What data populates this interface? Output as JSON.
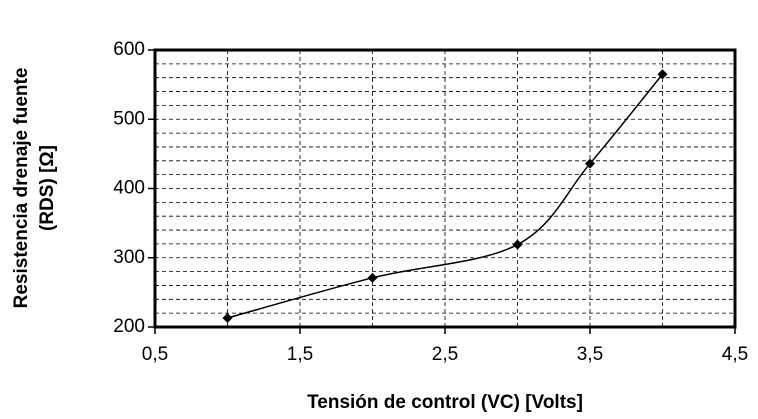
{
  "chart_data": {
    "type": "line",
    "xlabel": "Tensión de control (VC) [Volts]",
    "ylabel": [
      "Resistencia drenaje fuente",
      "(RDS) [Ω]"
    ],
    "x": [
      1,
      2,
      3,
      3.5,
      4
    ],
    "series": [
      {
        "color": "#000000",
        "values": [
          213,
          271,
          319,
          436,
          565
        ]
      }
    ],
    "xlim": [
      0.5,
      4.5
    ],
    "xticks": [
      {
        "value": 0.5,
        "label": "0,5"
      },
      {
        "value": 1.5,
        "label": "1,5"
      },
      {
        "value": 2.5,
        "label": "2,5"
      },
      {
        "value": 3.5,
        "label": "3,5"
      },
      {
        "value": 4.5,
        "label": "4,5"
      }
    ],
    "x_minor_ticks": [
      1,
      2,
      3,
      4
    ],
    "ylim": [
      200,
      600
    ],
    "yticks": [
      200,
      300,
      400,
      500,
      600
    ],
    "y_minor_ticks": [
      220,
      240,
      260,
      280,
      320,
      340,
      360,
      380,
      420,
      440,
      460,
      480,
      520,
      540,
      560,
      580
    ],
    "grid": true,
    "smooth": true
  }
}
